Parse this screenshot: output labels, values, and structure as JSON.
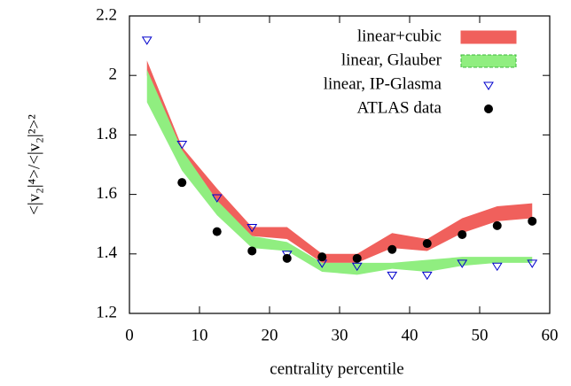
{
  "chart_data": {
    "type": "band-scatter",
    "xlabel": "centrality percentile",
    "ylabel": "<|v₂|⁴>/<|v₂|²>²",
    "xlim": [
      0,
      60
    ],
    "ylim": [
      1.2,
      2.2
    ],
    "xticks": [
      0,
      10,
      20,
      30,
      40,
      50,
      60
    ],
    "yticks": [
      1.2,
      1.4,
      1.6,
      1.8,
      2,
      2.2
    ],
    "grid": false,
    "legend": "top-right",
    "series": [
      {
        "name": "linear+cubic",
        "kind": "band",
        "color": "#f0605c",
        "x": [
          2.5,
          7.5,
          12.5,
          17.5,
          22.5,
          27.5,
          32.5,
          37.5,
          42.5,
          47.5,
          52.5,
          57.5
        ],
        "upper": [
          2.05,
          1.76,
          1.62,
          1.49,
          1.49,
          1.4,
          1.4,
          1.47,
          1.45,
          1.52,
          1.56,
          1.57
        ],
        "lower": [
          2.0,
          1.7,
          1.56,
          1.46,
          1.45,
          1.37,
          1.37,
          1.42,
          1.41,
          1.47,
          1.51,
          1.52
        ]
      },
      {
        "name": "linear, Glauber",
        "kind": "band",
        "color": "#90ee80",
        "x": [
          2.5,
          7.5,
          12.5,
          17.5,
          22.5,
          27.5,
          32.5,
          37.5,
          42.5,
          47.5,
          52.5,
          57.5
        ],
        "upper": [
          2.02,
          1.75,
          1.58,
          1.46,
          1.44,
          1.37,
          1.37,
          1.37,
          1.38,
          1.39,
          1.39,
          1.39
        ],
        "lower": [
          1.91,
          1.68,
          1.53,
          1.42,
          1.41,
          1.34,
          1.33,
          1.35,
          1.34,
          1.36,
          1.37,
          1.37
        ]
      },
      {
        "name": "linear, IP-Glasma",
        "kind": "triangle",
        "color": "#0000cc",
        "x": [
          2.5,
          7.5,
          12.5,
          17.5,
          22.5,
          27.5,
          32.5,
          37.5,
          42.5,
          47.5,
          52.5,
          57.5
        ],
        "values": [
          2.12,
          1.77,
          1.59,
          1.49,
          1.4,
          1.37,
          1.36,
          1.33,
          1.33,
          1.37,
          1.36,
          1.37
        ]
      },
      {
        "name": "ATLAS data",
        "kind": "dot",
        "color": "#000000",
        "x": [
          7.5,
          12.5,
          17.5,
          22.5,
          27.5,
          32.5,
          37.5,
          42.5,
          47.5,
          52.5,
          57.5
        ],
        "values": [
          1.64,
          1.475,
          1.41,
          1.385,
          1.39,
          1.385,
          1.415,
          1.435,
          1.465,
          1.495,
          1.51
        ]
      }
    ]
  }
}
